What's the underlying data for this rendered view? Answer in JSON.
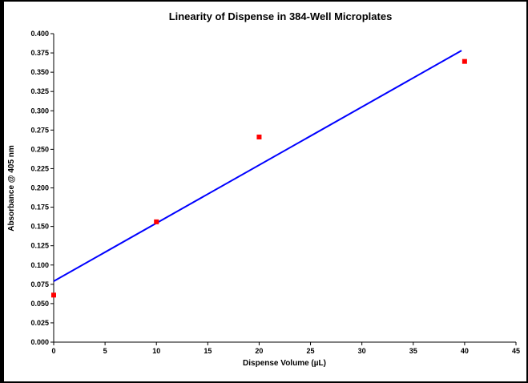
{
  "chart_data": {
    "type": "scatter",
    "title": "Linearity of Dispense in 384-Well Microplates",
    "xlabel": "Dispense Volume (µL)",
    "ylabel": "Absorbance @ 405 nm",
    "xlim": [
      0,
      45
    ],
    "ylim": [
      0,
      0.4
    ],
    "x_ticks": [
      "0",
      "5",
      "10",
      "15",
      "20",
      "25",
      "30",
      "35",
      "40",
      "45"
    ],
    "y_ticks": [
      "0.000",
      "0.025",
      "0.050",
      "0.075",
      "0.100",
      "0.125",
      "0.150",
      "0.175",
      "0.200",
      "0.225",
      "0.250",
      "0.275",
      "0.300",
      "0.325",
      "0.350",
      "0.375",
      "0.400"
    ],
    "grid": false,
    "legend": "none",
    "series": [
      {
        "kind": "points",
        "color": "#ff0000",
        "points": [
          {
            "x": 0,
            "y": 0.061
          },
          {
            "x": 10,
            "y": 0.156
          },
          {
            "x": 20,
            "y": 0.266
          },
          {
            "x": 40,
            "y": 0.364
          }
        ]
      },
      {
        "kind": "fit-line",
        "color": "#0000ff",
        "points": [
          {
            "x": 0,
            "y": 0.079
          },
          {
            "x": 39.7,
            "y": 0.378
          }
        ]
      }
    ]
  }
}
